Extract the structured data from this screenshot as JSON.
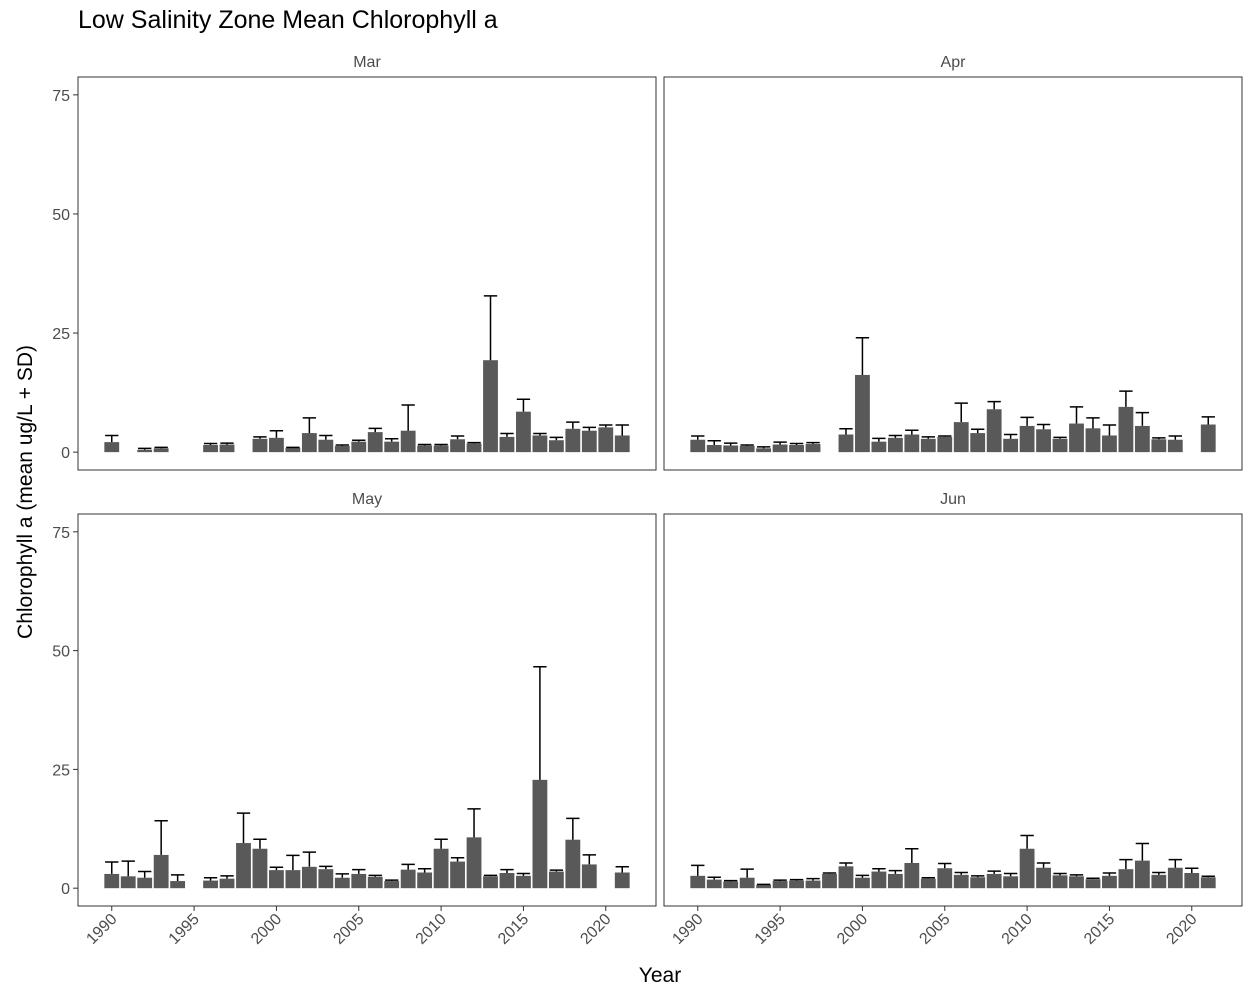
{
  "chart_data": {
    "type": "bar",
    "title": "Low Salinity Zone Mean Chlorophyll a",
    "x_label": "Year",
    "y_label": "Chlorophyll a (mean ug/L + SD)",
    "x": [
      1990,
      1991,
      1992,
      1993,
      1994,
      1995,
      1996,
      1997,
      1998,
      1999,
      2000,
      2001,
      2002,
      2003,
      2004,
      2005,
      2006,
      2007,
      2008,
      2009,
      2010,
      2011,
      2012,
      2013,
      2014,
      2015,
      2016,
      2017,
      2018,
      2019,
      2020,
      2021
    ],
    "xlim": [
      1987.95,
      2023.05
    ],
    "xticks": [
      1990,
      1995,
      2000,
      2005,
      2010,
      2015,
      2020
    ],
    "ylim": [
      -3.75,
      78.75
    ],
    "yticks": [
      0,
      25,
      50,
      75
    ],
    "facets": [
      {
        "name": "Mar",
        "color": "#595959",
        "values": [
          2.1,
          null,
          0.5,
          0.8,
          null,
          null,
          1.5,
          1.6,
          null,
          2.8,
          3.0,
          0.9,
          4.0,
          2.6,
          1.3,
          2.2,
          4.2,
          2.2,
          4.5,
          1.4,
          1.4,
          2.7,
          1.8,
          19.3,
          3.2,
          8.5,
          3.5,
          2.5,
          4.9,
          4.5,
          5.2,
          3.5
        ],
        "errors": [
          1.4,
          null,
          0.3,
          0.2,
          null,
          null,
          0.3,
          0.3,
          null,
          0.4,
          1.5,
          0.1,
          3.2,
          0.9,
          0.2,
          0.3,
          0.8,
          0.6,
          5.4,
          0.2,
          0.2,
          0.7,
          0.2,
          13.5,
          0.7,
          2.6,
          0.4,
          0.6,
          1.4,
          0.7,
          0.5,
          2.2
        ]
      },
      {
        "name": "Apr",
        "color": "#595959",
        "values": [
          2.6,
          1.5,
          1.4,
          1.3,
          0.8,
          1.6,
          1.5,
          1.7,
          null,
          3.7,
          16.2,
          2.2,
          3.0,
          3.7,
          2.8,
          3.2,
          6.3,
          4.0,
          9.0,
          2.8,
          5.5,
          4.8,
          2.8,
          6.0,
          5.0,
          3.5,
          9.5,
          5.5,
          2.7,
          2.6,
          null,
          5.8
        ],
        "errors": [
          0.8,
          0.9,
          0.5,
          0.2,
          0.3,
          0.5,
          0.3,
          0.3,
          null,
          1.2,
          7.8,
          0.7,
          0.5,
          0.9,
          0.4,
          0.2,
          4.0,
          0.8,
          1.6,
          0.9,
          1.8,
          1.0,
          0.3,
          3.5,
          2.2,
          2.2,
          3.3,
          2.8,
          0.3,
          0.8,
          null,
          1.6
        ]
      },
      {
        "name": "May",
        "color": "#595959",
        "values": [
          3.0,
          2.5,
          2.2,
          7.0,
          1.5,
          null,
          1.6,
          2.0,
          9.5,
          8.3,
          3.8,
          3.8,
          4.5,
          4.0,
          2.2,
          3.0,
          2.4,
          1.5,
          3.9,
          3.3,
          8.3,
          5.6,
          10.7,
          2.5,
          3.2,
          2.6,
          22.8,
          3.5,
          10.2,
          5.0,
          null,
          3.3
        ],
        "errors": [
          2.5,
          3.2,
          1.3,
          7.2,
          1.3,
          null,
          0.6,
          0.6,
          6.3,
          2.0,
          0.6,
          3.1,
          3.1,
          0.6,
          0.8,
          0.9,
          0.3,
          0.2,
          1.1,
          0.8,
          2.0,
          0.8,
          6.0,
          0.2,
          0.7,
          0.5,
          23.8,
          0.3,
          4.5,
          2.0,
          null,
          1.2
        ]
      },
      {
        "name": "Jun",
        "color": "#595959",
        "values": [
          2.6,
          1.8,
          1.4,
          2.2,
          0.7,
          1.5,
          1.6,
          1.6,
          3.0,
          4.6,
          2.2,
          3.5,
          3.0,
          5.3,
          2.0,
          4.2,
          2.8,
          2.3,
          3.0,
          2.5,
          8.3,
          4.3,
          2.7,
          2.5,
          1.9,
          2.6,
          4.0,
          5.8,
          2.8,
          4.3,
          3.2,
          2.3
        ],
        "errors": [
          2.2,
          0.5,
          0.2,
          1.8,
          0.1,
          0.2,
          0.2,
          0.4,
          0.2,
          0.7,
          0.5,
          0.6,
          0.7,
          3.0,
          0.2,
          1.0,
          0.5,
          0.3,
          0.6,
          0.6,
          2.8,
          1.0,
          0.4,
          0.3,
          0.2,
          0.6,
          2.0,
          3.6,
          0.5,
          1.7,
          1.0,
          0.2
        ]
      }
    ]
  }
}
